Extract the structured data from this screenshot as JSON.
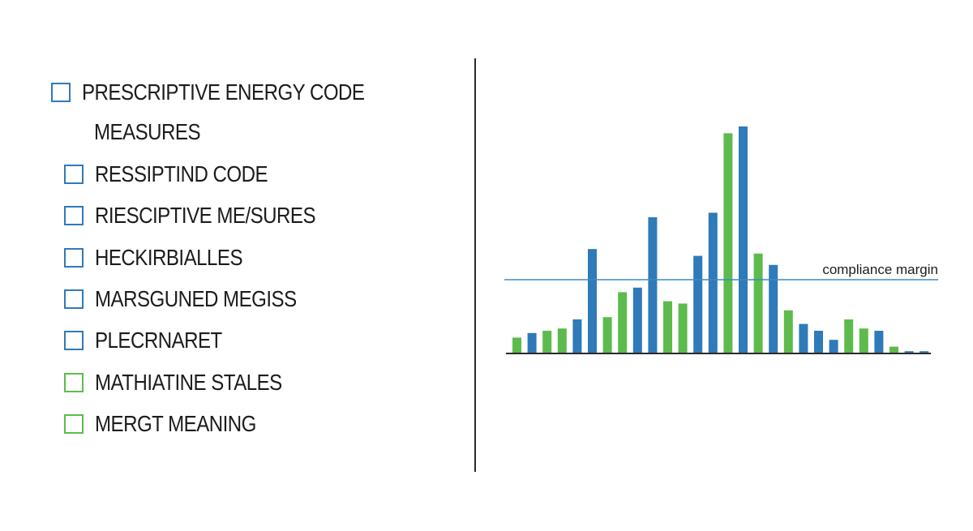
{
  "checklist": {
    "title_line1": "PRESCRIPTIVE ENERGY CODE",
    "title_line2": "MEASURES",
    "items": [
      {
        "label": "RESSIPTIND CODE",
        "color": "#2f7ab8"
      },
      {
        "label": "RIESCIPTIVE ME/SURES",
        "color": "#2f7ab8"
      },
      {
        "label": "HECKIRBIALLES",
        "color": "#2f7ab8"
      },
      {
        "label": "MARSGUNED MEGISS",
        "color": "#2f7ab8"
      },
      {
        "label": "PLECRNARET",
        "color": "#2f7ab8"
      },
      {
        "label": "MATHIATINE STALES",
        "color": "#5dbb4d"
      },
      {
        "label": "MERGT MEANING",
        "color": "#5dbb4d"
      }
    ]
  },
  "chart_data": {
    "type": "bar",
    "title": "",
    "xlabel": "",
    "ylabel": "",
    "ylim": [
      0,
      100
    ],
    "grid": false,
    "legend": "none",
    "colors": {
      "green": "#5dbb4d",
      "blue": "#2f7ab8",
      "baseline": "#2b2b2b",
      "reference_line": "#3b8bc0"
    },
    "bars": [
      {
        "value": 7,
        "color": "green"
      },
      {
        "value": 9,
        "color": "blue"
      },
      {
        "value": 10,
        "color": "green"
      },
      {
        "value": 11,
        "color": "green"
      },
      {
        "value": 15,
        "color": "blue"
      },
      {
        "value": 46,
        "color": "blue"
      },
      {
        "value": 16,
        "color": "green"
      },
      {
        "value": 27,
        "color": "green"
      },
      {
        "value": 29,
        "color": "blue"
      },
      {
        "value": 60,
        "color": "blue"
      },
      {
        "value": 23,
        "color": "green"
      },
      {
        "value": 22,
        "color": "green"
      },
      {
        "value": 43,
        "color": "blue"
      },
      {
        "value": 62,
        "color": "blue"
      },
      {
        "value": 97,
        "color": "green"
      },
      {
        "value": 100,
        "color": "blue"
      },
      {
        "value": 44,
        "color": "green"
      },
      {
        "value": 39,
        "color": "blue"
      },
      {
        "value": 19,
        "color": "green"
      },
      {
        "value": 13,
        "color": "blue"
      },
      {
        "value": 10,
        "color": "blue"
      },
      {
        "value": 6,
        "color": "blue"
      },
      {
        "value": 15,
        "color": "green"
      },
      {
        "value": 11,
        "color": "green"
      },
      {
        "value": 10,
        "color": "blue"
      },
      {
        "value": 3,
        "color": "green"
      },
      {
        "value": 1,
        "color": "blue"
      },
      {
        "value": 1,
        "color": "blue"
      }
    ],
    "reference_line": {
      "label": "compliance margin",
      "value": 32.5
    }
  }
}
